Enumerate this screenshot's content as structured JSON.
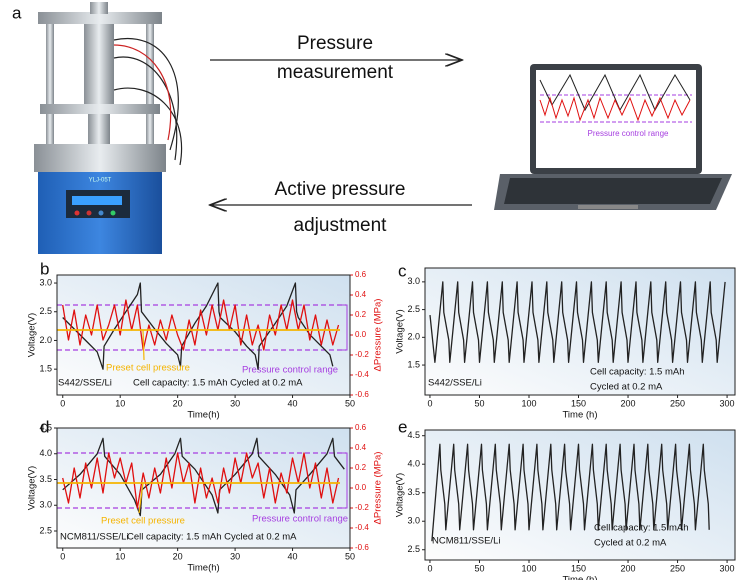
{
  "panel_a": {
    "label": "a",
    "arrow_top": [
      "Pressure",
      "measurement"
    ],
    "arrow_bottom": [
      "Active pressure",
      "adjustment"
    ],
    "screen_label": "Pressure control range",
    "device_label": "YLJ-05T"
  },
  "chart_data": [
    {
      "type": "line",
      "panel": "b",
      "xlabel": "Time(h)",
      "ylabel": "Voltage(V)",
      "y2label": "ΔPressure (MPa)",
      "xlim": [
        -1,
        50
      ],
      "xticks": [
        0,
        10,
        20,
        30,
        40,
        50
      ],
      "ylim": [
        1.05,
        3.14
      ],
      "yticks": [
        1.5,
        {
          "value": 2,
          "label": "2.0"
        },
        2.5,
        {
          "value": 3,
          "label": "3.0"
        }
      ],
      "y2lim": [
        -0.6,
        0.6
      ],
      "y2ticks": [
        -0.6,
        -0.4,
        -0.2,
        {
          "value": 0,
          "label": "0.0"
        },
        0.2,
        0.4,
        0.6
      ],
      "series": [
        {
          "color": "#222222",
          "x": [
            0,
            2,
            4,
            6,
            7,
            7.2,
            9,
            11,
            13,
            13.5,
            13.7,
            16,
            18,
            20,
            20.5,
            20.7,
            23,
            25,
            27,
            27.2,
            27.4,
            30,
            32,
            33.5,
            34,
            34.2,
            37,
            39,
            40.5,
            40.7,
            41,
            43,
            45,
            46.5,
            47
          ],
          "values": [
            2.4,
            2.2,
            2.0,
            1.8,
            1.5,
            1.9,
            2.2,
            2.5,
            2.8,
            3.0,
            2.5,
            2.2,
            1.95,
            1.75,
            1.55,
            1.9,
            2.3,
            2.6,
            3.0,
            2.5,
            2.4,
            2.15,
            1.9,
            1.75,
            1.5,
            1.9,
            2.3,
            2.6,
            3.0,
            2.5,
            2.4,
            2.1,
            1.9,
            1.75,
            1.55
          ]
        },
        {
          "color": "#e01010",
          "axis": "y2",
          "x": [
            0,
            1,
            2,
            3,
            4,
            5,
            6,
            7,
            8,
            9,
            10,
            11,
            12,
            13,
            14,
            15,
            16,
            17,
            18,
            19,
            20,
            21,
            22,
            23,
            24,
            25,
            26,
            27,
            28,
            29,
            30,
            31,
            32,
            33,
            34,
            35,
            36,
            37,
            38,
            39,
            40,
            41,
            42,
            43,
            44,
            45,
            46,
            47,
            48
          ],
          "values": [
            0.3,
            -0.05,
            0.25,
            -0.1,
            0.2,
            0.0,
            0.3,
            -0.05,
            0.1,
            0.3,
            0.0,
            0.35,
            0.05,
            0.3,
            -0.15,
            0.1,
            -0.1,
            0.15,
            -0.05,
            0.2,
            0.0,
            -0.15,
            0.15,
            -0.1,
            0.25,
            0.0,
            0.3,
            0.05,
            0.35,
            0.05,
            0.3,
            -0.1,
            0.2,
            -0.1,
            0.1,
            -0.15,
            0.2,
            0.0,
            0.3,
            0.05,
            0.35,
            0.05,
            0.3,
            -0.05,
            0.2,
            -0.1,
            0.15,
            -0.1,
            0.1
          ]
        }
      ],
      "preset": {
        "label": "Preset cell pressure",
        "value": 0.05,
        "axis": "y2",
        "color": "#f5b400"
      },
      "range": {
        "label": "Pressure control range",
        "values": [
          0.3,
          -0.15
        ],
        "axis": "y2",
        "color": "#a63ee0"
      },
      "sample": "S442/SSE/Li",
      "notes": [
        "Cell capacity: 1.5 mAh Cycled at 0.2 mA"
      ]
    },
    {
      "type": "line",
      "panel": "c",
      "xlabel": "Time (h)",
      "ylabel": "Voltage(V)",
      "xlim": [
        -5,
        308
      ],
      "xticks": [
        0,
        50,
        100,
        150,
        200,
        250,
        300
      ],
      "ylim": [
        0.96,
        3.25
      ],
      "yticks": [
        1.5,
        {
          "value": 2,
          "label": "2.0"
        },
        2.5,
        {
          "value": 3,
          "label": "3.0"
        }
      ],
      "series": [
        {
          "color": "#222222",
          "x": [
            0,
            5,
            13,
            14,
            19,
            20,
            28,
            29,
            34,
            35,
            43,
            44,
            49,
            50,
            58,
            59,
            64,
            65,
            73,
            74,
            79,
            80,
            88,
            89,
            94,
            95,
            103,
            104,
            109,
            110,
            118,
            119,
            124,
            125,
            133,
            134,
            139,
            140,
            148,
            149,
            154,
            155,
            163,
            164,
            169,
            170,
            178,
            179,
            184,
            185,
            193,
            194,
            199,
            200,
            208,
            209,
            214,
            215,
            223,
            224,
            229,
            230,
            238,
            239,
            244,
            245,
            253,
            254,
            259,
            260,
            268,
            269,
            274,
            275,
            283,
            284,
            289,
            290,
            298
          ],
          "values": [
            2.4,
            1.55,
            3.0,
            2.45,
            1.95,
            1.55,
            3.0,
            2.45,
            1.95,
            1.55,
            3.0,
            2.45,
            1.95,
            1.55,
            3.0,
            2.45,
            1.95,
            1.55,
            3.0,
            2.45,
            1.95,
            1.55,
            3.0,
            2.45,
            1.95,
            1.55,
            3.0,
            2.45,
            1.95,
            1.55,
            3.0,
            2.45,
            1.95,
            1.55,
            3.0,
            2.45,
            1.95,
            1.55,
            3.0,
            2.45,
            1.95,
            1.55,
            3.0,
            2.45,
            1.95,
            1.55,
            3.0,
            2.45,
            1.95,
            1.55,
            3.0,
            2.45,
            1.95,
            1.55,
            3.0,
            2.45,
            1.95,
            1.55,
            3.0,
            2.45,
            1.95,
            1.55,
            3.0,
            2.45,
            1.95,
            1.55,
            3.0,
            2.45,
            1.95,
            1.55,
            3.0,
            2.45,
            1.95,
            1.55,
            3.0,
            2.45,
            1.95,
            1.55,
            3.0
          ]
        }
      ],
      "sample": "S442/SSE/Li",
      "notes": [
        "Cell capacity: 1.5 mAh",
        "Cycled at 0.2 mA"
      ]
    },
    {
      "type": "line",
      "panel": "d",
      "xlabel": "Time(h)",
      "ylabel": "Voltage(V)",
      "y2label": "ΔPressure (MPa)",
      "xlim": [
        -1,
        50
      ],
      "xticks": [
        0,
        10,
        20,
        30,
        40,
        50
      ],
      "ylim": [
        2.17,
        4.5
      ],
      "yticks": [
        2.5,
        {
          "value": 3,
          "label": "3.0"
        },
        3.5,
        {
          "value": 4,
          "label": "4.0"
        },
        4.5
      ],
      "y2lim": [
        -0.6,
        0.6
      ],
      "y2ticks": [
        -0.6,
        -0.4,
        -0.2,
        {
          "value": 0,
          "label": "0.0"
        },
        0.2,
        0.4,
        0.6
      ],
      "series": [
        {
          "color": "#222222",
          "x": [
            0,
            3,
            6,
            7,
            7.3,
            10,
            12.5,
            13.5,
            13.8,
            17,
            19.5,
            20.5,
            20.8,
            23,
            26,
            27,
            27.3,
            30,
            33,
            33.8,
            34.1,
            37,
            39.5,
            40.3,
            40.6,
            43,
            46,
            47,
            47.3,
            49
          ],
          "values": [
            3.3,
            3.6,
            4.0,
            4.3,
            3.95,
            3.6,
            3.1,
            2.8,
            3.3,
            3.6,
            4.0,
            4.3,
            3.95,
            3.7,
            3.2,
            2.85,
            3.3,
            3.6,
            4.0,
            4.3,
            3.95,
            3.6,
            3.2,
            2.85,
            3.3,
            3.6,
            4.0,
            4.3,
            3.95,
            3.7
          ]
        },
        {
          "color": "#e01010",
          "axis": "y2",
          "x": [
            0,
            1,
            2,
            3,
            4,
            5,
            6,
            7,
            8,
            9,
            10,
            11,
            12,
            13,
            14,
            15,
            16,
            17,
            18,
            19,
            20,
            21,
            22,
            23,
            24,
            25,
            26,
            27,
            28,
            29,
            30,
            31,
            32,
            33,
            34,
            35,
            36,
            37,
            38,
            39,
            40,
            41,
            42,
            43,
            44,
            45,
            46,
            47,
            48
          ],
          "values": [
            0.1,
            -0.15,
            0.2,
            -0.1,
            0.25,
            0.0,
            0.3,
            -0.05,
            0.35,
            0.1,
            0.3,
            0.05,
            0.25,
            -0.2,
            0.15,
            -0.1,
            0.2,
            -0.05,
            0.3,
            0.0,
            0.35,
            0.05,
            0.25,
            -0.15,
            0.2,
            -0.1,
            0.1,
            -0.15,
            0.2,
            -0.05,
            0.3,
            0.05,
            0.35,
            0.1,
            0.25,
            -0.1,
            0.2,
            -0.15,
            0.15,
            -0.05,
            0.3,
            0.05,
            0.35,
            0.0,
            0.25,
            -0.1,
            0.2,
            -0.15,
            0.1
          ]
        }
      ],
      "preset": {
        "label": "Preset cell pressure",
        "value": 0.05,
        "axis": "y2",
        "color": "#f5b400"
      },
      "range": {
        "label": "Pressure control range",
        "values": [
          0.35,
          -0.2
        ],
        "axis": "y2",
        "color": "#a63ee0"
      },
      "sample": "NCM811/SSE/Li",
      "notes": [
        "Cell capacity: 1.5 mAh Cycled at 0.2 mA"
      ]
    },
    {
      "type": "line",
      "panel": "e",
      "xlabel": "Time (h)",
      "ylabel": "Voltage(V)",
      "xlim": [
        -5,
        308
      ],
      "xticks": [
        0,
        50,
        100,
        150,
        200,
        250,
        300
      ],
      "ylim": [
        2.32,
        4.6
      ],
      "yticks": [
        2.5,
        {
          "value": 3,
          "label": "3.0"
        },
        3.5,
        {
          "value": 4,
          "label": "4.0"
        },
        4.5
      ],
      "series": [
        {
          "color": "#222222",
          "x": [
            2,
            10,
            11,
            15,
            16,
            24,
            25,
            29,
            30,
            38,
            39,
            43,
            44,
            52,
            53,
            57,
            58,
            66,
            67,
            71,
            72,
            80,
            81,
            85,
            86,
            94,
            95,
            99,
            100,
            108,
            109,
            113,
            114,
            122,
            123,
            127,
            128,
            136,
            137,
            141,
            142,
            150,
            151,
            155,
            156,
            164,
            165,
            169,
            170,
            178,
            179,
            183,
            184,
            192,
            193,
            197,
            198,
            206,
            207,
            211,
            212,
            220,
            221,
            225,
            226,
            234,
            235,
            239,
            240,
            248,
            249,
            253,
            254,
            262,
            263,
            267,
            268,
            276,
            277,
            281,
            282
          ],
          "values": [
            2.65,
            4.35,
            3.9,
            3.3,
            2.85,
            4.35,
            3.9,
            3.3,
            2.85,
            4.35,
            3.9,
            3.3,
            2.85,
            4.35,
            3.9,
            3.3,
            2.85,
            4.35,
            3.9,
            3.3,
            2.85,
            4.35,
            3.9,
            3.3,
            2.85,
            4.35,
            3.9,
            3.3,
            2.85,
            4.35,
            3.9,
            3.3,
            2.85,
            4.35,
            3.9,
            3.3,
            2.85,
            4.35,
            3.9,
            3.3,
            2.85,
            4.35,
            3.9,
            3.3,
            2.85,
            4.35,
            3.9,
            3.3,
            2.85,
            4.35,
            3.9,
            3.3,
            2.85,
            4.35,
            3.9,
            3.3,
            2.85,
            4.35,
            3.9,
            3.3,
            2.85,
            4.35,
            3.9,
            3.3,
            2.85,
            4.35,
            3.9,
            3.3,
            2.85,
            4.35,
            3.9,
            3.3,
            2.85,
            4.35,
            3.9,
            3.3,
            2.85,
            4.35,
            3.9,
            3.3,
            2.85
          ]
        }
      ],
      "sample": "NCM811/SSE/Li",
      "notes": [
        "Cell capacity: 1.5 mAh",
        "Cycled at 0.2 mA"
      ]
    }
  ]
}
